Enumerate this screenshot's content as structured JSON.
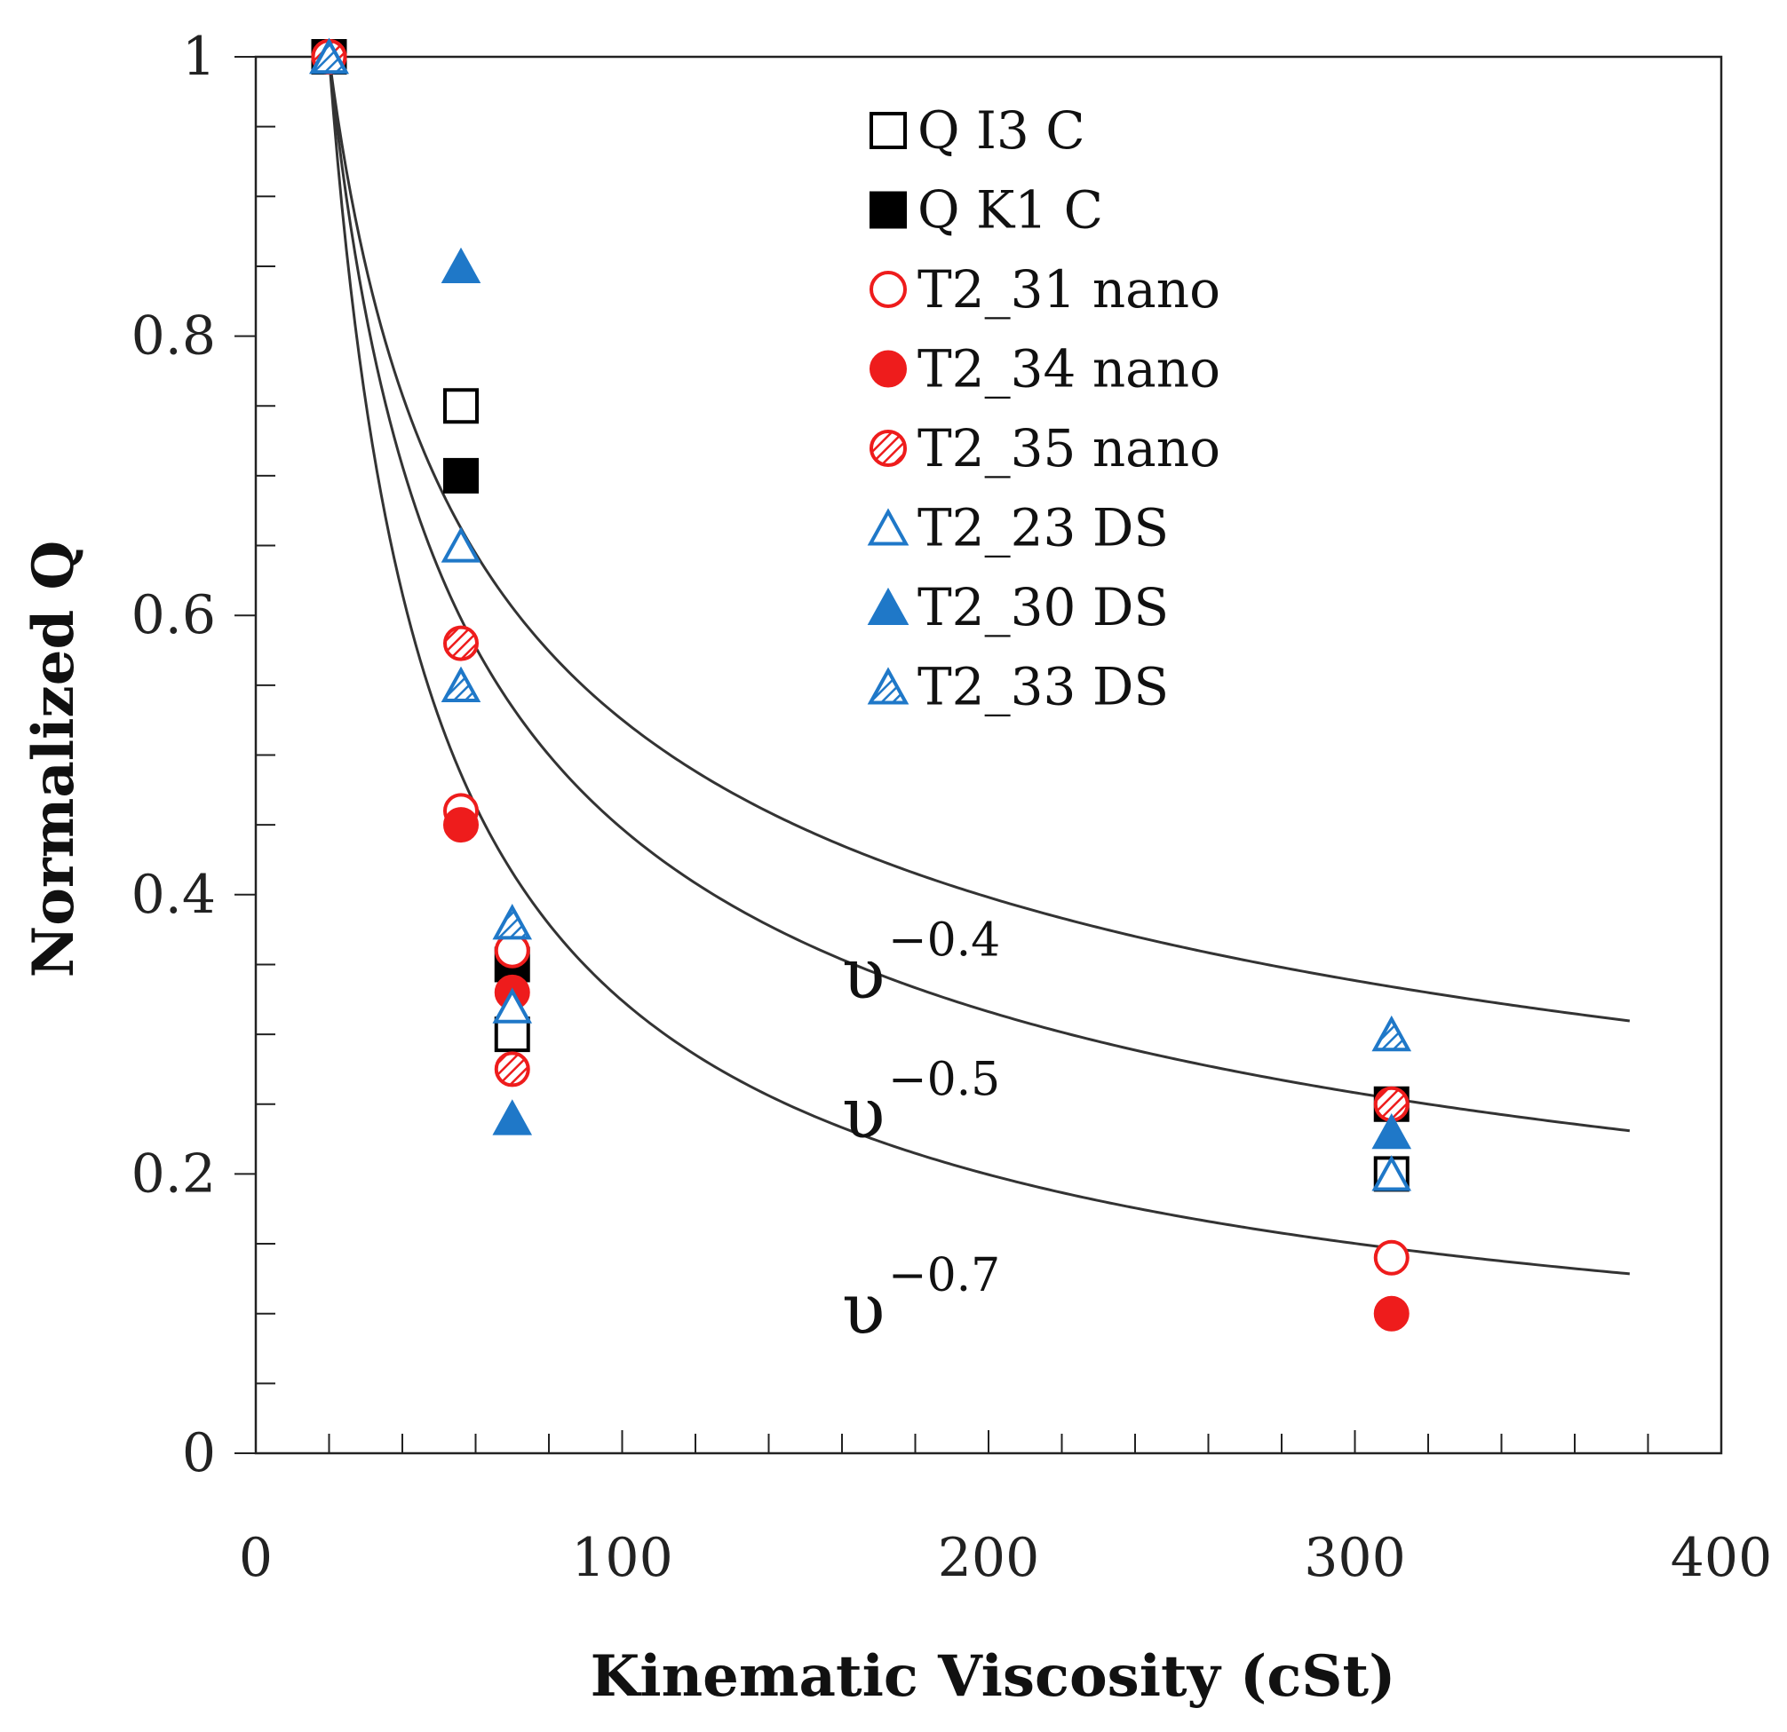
{
  "chart_data": {
    "type": "scatter",
    "title": "",
    "xlabel": "Kinematic Viscosity (cSt)",
    "ylabel": "Normalized Q",
    "xlim": [
      0,
      400
    ],
    "ylim": [
      0,
      1
    ],
    "x_major_ticks": [
      0,
      100,
      200,
      300,
      400
    ],
    "x_tick_labels": [
      "0",
      "100",
      "200",
      "300",
      "400"
    ],
    "x_minor_step": 20,
    "y_major_ticks": [
      0,
      0.2,
      0.4,
      0.6,
      0.8,
      1
    ],
    "y_tick_labels": [
      "0",
      "0.2",
      "0.4",
      "0.6",
      "0.8",
      "1"
    ],
    "y_minor_step": 0.05,
    "grid": false,
    "legend_position": "top-center",
    "colors": {
      "black": "#000000",
      "red": "#ee1c1c",
      "blue": "#1f78c8",
      "curve": "#333333"
    },
    "series": [
      {
        "name": "Q I3 C",
        "marker": "square",
        "fill": "open",
        "color": "#000000",
        "x": [
          20,
          56,
          70,
          310
        ],
        "y": [
          1.0,
          0.75,
          0.3,
          0.2
        ]
      },
      {
        "name": "Q K1 C",
        "marker": "square",
        "fill": "solid",
        "color": "#000000",
        "x": [
          20,
          56,
          70,
          310
        ],
        "y": [
          1.0,
          0.7,
          0.35,
          0.25
        ]
      },
      {
        "name": "T2_31 nano",
        "marker": "circle",
        "fill": "open",
        "color": "#ee1c1c",
        "x": [
          20,
          56,
          70,
          310
        ],
        "y": [
          1.0,
          0.46,
          0.36,
          0.14
        ]
      },
      {
        "name": "T2_34 nano",
        "marker": "circle",
        "fill": "solid",
        "color": "#ee1c1c",
        "x": [
          20,
          56,
          70,
          310
        ],
        "y": [
          1.0,
          0.45,
          0.33,
          0.1
        ]
      },
      {
        "name": "T2_35 nano",
        "marker": "circle",
        "fill": "hatched",
        "color": "#ee1c1c",
        "x": [
          20,
          56,
          70,
          310
        ],
        "y": [
          1.0,
          0.58,
          0.275,
          0.25
        ]
      },
      {
        "name": "T2_23 DS",
        "marker": "triangle",
        "fill": "open",
        "color": "#1f78c8",
        "x": [
          20,
          56,
          70,
          310
        ],
        "y": [
          1.0,
          0.65,
          0.32,
          0.2
        ]
      },
      {
        "name": "T2_30 DS",
        "marker": "triangle",
        "fill": "solid",
        "color": "#1f78c8",
        "x": [
          20,
          56,
          70,
          310
        ],
        "y": [
          1.0,
          0.85,
          0.24,
          0.23
        ]
      },
      {
        "name": "T2_33 DS",
        "marker": "triangle",
        "fill": "hatched",
        "color": "#1f78c8",
        "x": [
          20,
          56,
          70,
          310
        ],
        "y": [
          1.0,
          0.55,
          0.38,
          0.3
        ]
      }
    ],
    "curves": [
      {
        "name": "υ^-0.4",
        "base": "υ",
        "exponent": "−0.4",
        "power": -0.4,
        "x0": 20,
        "x_end": 375
      },
      {
        "name": "υ^-0.5",
        "base": "υ",
        "exponent": "−0.5",
        "power": -0.5,
        "x0": 20,
        "x_end": 375
      },
      {
        "name": "υ^-0.7",
        "base": "υ",
        "exponent": "−0.7",
        "power": -0.7,
        "x0": 20,
        "x_end": 375
      }
    ],
    "annotations": [
      {
        "curve": 0,
        "x": 160,
        "y": 0.345
      },
      {
        "curve": 1,
        "x": 160,
        "y": 0.245
      },
      {
        "curve": 2,
        "x": 160,
        "y": 0.105
      }
    ]
  }
}
